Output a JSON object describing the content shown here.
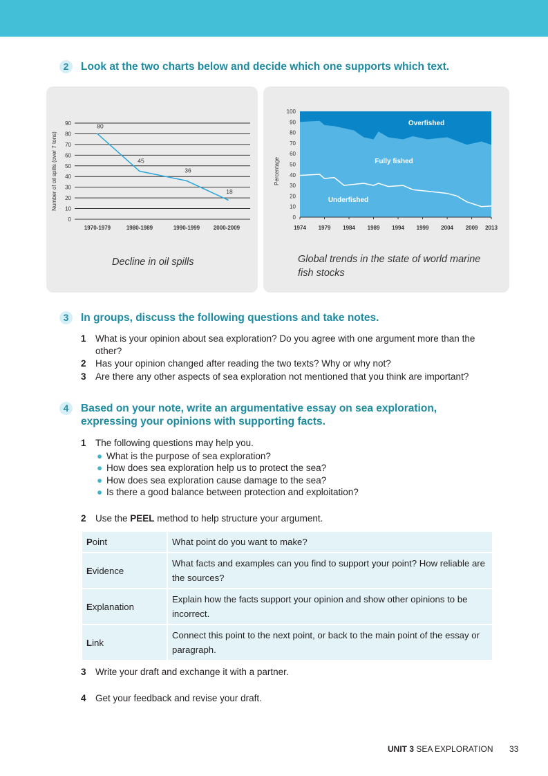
{
  "ex2": {
    "num": "2",
    "title": "Look at the two charts below and decide which one supports which text."
  },
  "chart_data": [
    {
      "type": "line",
      "title": "Decline in oil spills",
      "ylabel": "Number of oil spills (over 7 tons)",
      "categories": [
        "1970-1979",
        "1980-1989",
        "1990-1999",
        "2000-2009"
      ],
      "values": [
        80,
        45,
        36,
        18
      ],
      "data_labels": [
        "80",
        "45",
        "36",
        "18"
      ],
      "ylim": [
        0,
        90
      ],
      "yticks": [
        0,
        10,
        20,
        30,
        40,
        50,
        60,
        70,
        80,
        90
      ],
      "grid": true,
      "line_color": "#2aa6d8"
    },
    {
      "type": "area",
      "title": "Global trends in the state of world marine fish stocks",
      "ylabel": "Percentage",
      "xticks": [
        1974,
        1979,
        1984,
        1989,
        1994,
        1999,
        2004,
        2009,
        2013
      ],
      "yticks": [
        0,
        10,
        20,
        30,
        40,
        50,
        60,
        70,
        80,
        90,
        100
      ],
      "xlim": [
        1974,
        2013
      ],
      "ylim": [
        0,
        100
      ],
      "series": [
        {
          "name": "Underfished",
          "color": "#55b6e6",
          "x": [
            1974,
            1978,
            1979,
            1981,
            1983,
            1987,
            1989,
            1990,
            1992,
            1995,
            1997,
            2000,
            2004,
            2006,
            2008,
            2011,
            2013
          ],
          "values": [
            39.5,
            40.5,
            36.5,
            37.5,
            30,
            32,
            30,
            32,
            29,
            30,
            26,
            24.5,
            22.5,
            20,
            14.5,
            10,
            10.5
          ]
        },
        {
          "name": "Fully fished",
          "color": "#55b6e6",
          "x": [
            1974,
            1978,
            1979,
            1981,
            1985,
            1987,
            1989,
            1990,
            1992,
            1995,
            1997,
            2000,
            2004,
            2006,
            2008,
            2011,
            2013
          ],
          "cumulative_top": [
            90,
            91,
            87,
            86,
            82,
            75.5,
            73.5,
            81,
            75.5,
            73.5,
            76.5,
            73.5,
            75.5,
            72,
            68.5,
            71.5,
            68.5
          ]
        },
        {
          "name": "Overfished",
          "color": "#0a86c8",
          "cumulative_top": 100
        }
      ]
    }
  ],
  "captions": {
    "left": "Decline in oil spills",
    "right_line1": "Global trends in the state of world marine",
    "right_line2": "fish stocks"
  },
  "ex3": {
    "num": "3",
    "title": "In groups, discuss the following questions and take notes.",
    "items": [
      {
        "n": "1",
        "text": "What is your opinion about sea exploration? Do you agree with one argument more than the other?"
      },
      {
        "n": "2",
        "text": "Has your opinion changed after reading the two texts? Why or why not?"
      },
      {
        "n": "3",
        "text": "Are there any other aspects of sea exploration not mentioned that you think are important?"
      }
    ]
  },
  "ex4": {
    "num": "4",
    "title": "Based on your note, write an argumentative essay on sea exploration, expressing your opinions with supporting facts.",
    "item1": {
      "n": "1",
      "text": "The following questions may help you."
    },
    "bullets": [
      "What is the purpose of sea exploration?",
      "How does sea exploration help us to protect the sea?",
      "How does sea exploration cause damage to the sea?",
      "Is there a good balance between protection and exploitation?"
    ],
    "item2": {
      "n": "2",
      "pre": "Use the ",
      "bold": "PEEL",
      "post": " method to help structure your argument."
    },
    "peel": [
      {
        "initial": "P",
        "rest": "oint",
        "desc": "What point do you want to make?"
      },
      {
        "initial": "E",
        "rest": "vidence",
        "desc": "What facts and examples can you find to support your point? How reliable are the sources?"
      },
      {
        "initial": "E",
        "rest": "xplanation",
        "desc": "Explain how the facts support your opinion and show other opinions to be incorrect."
      },
      {
        "initial": "L",
        "rest": "ink",
        "desc": "Connect this point to the next point, or back to the main point of the essay or paragraph."
      }
    ],
    "item3": {
      "n": "3",
      "text": "Write your draft and exchange it with a partner."
    },
    "item4": {
      "n": "4",
      "text": "Get your feedback and revise your draft."
    }
  },
  "footer": {
    "unit": "UNIT 3",
    "section": "SEA EXPLORATION",
    "page": "33"
  }
}
